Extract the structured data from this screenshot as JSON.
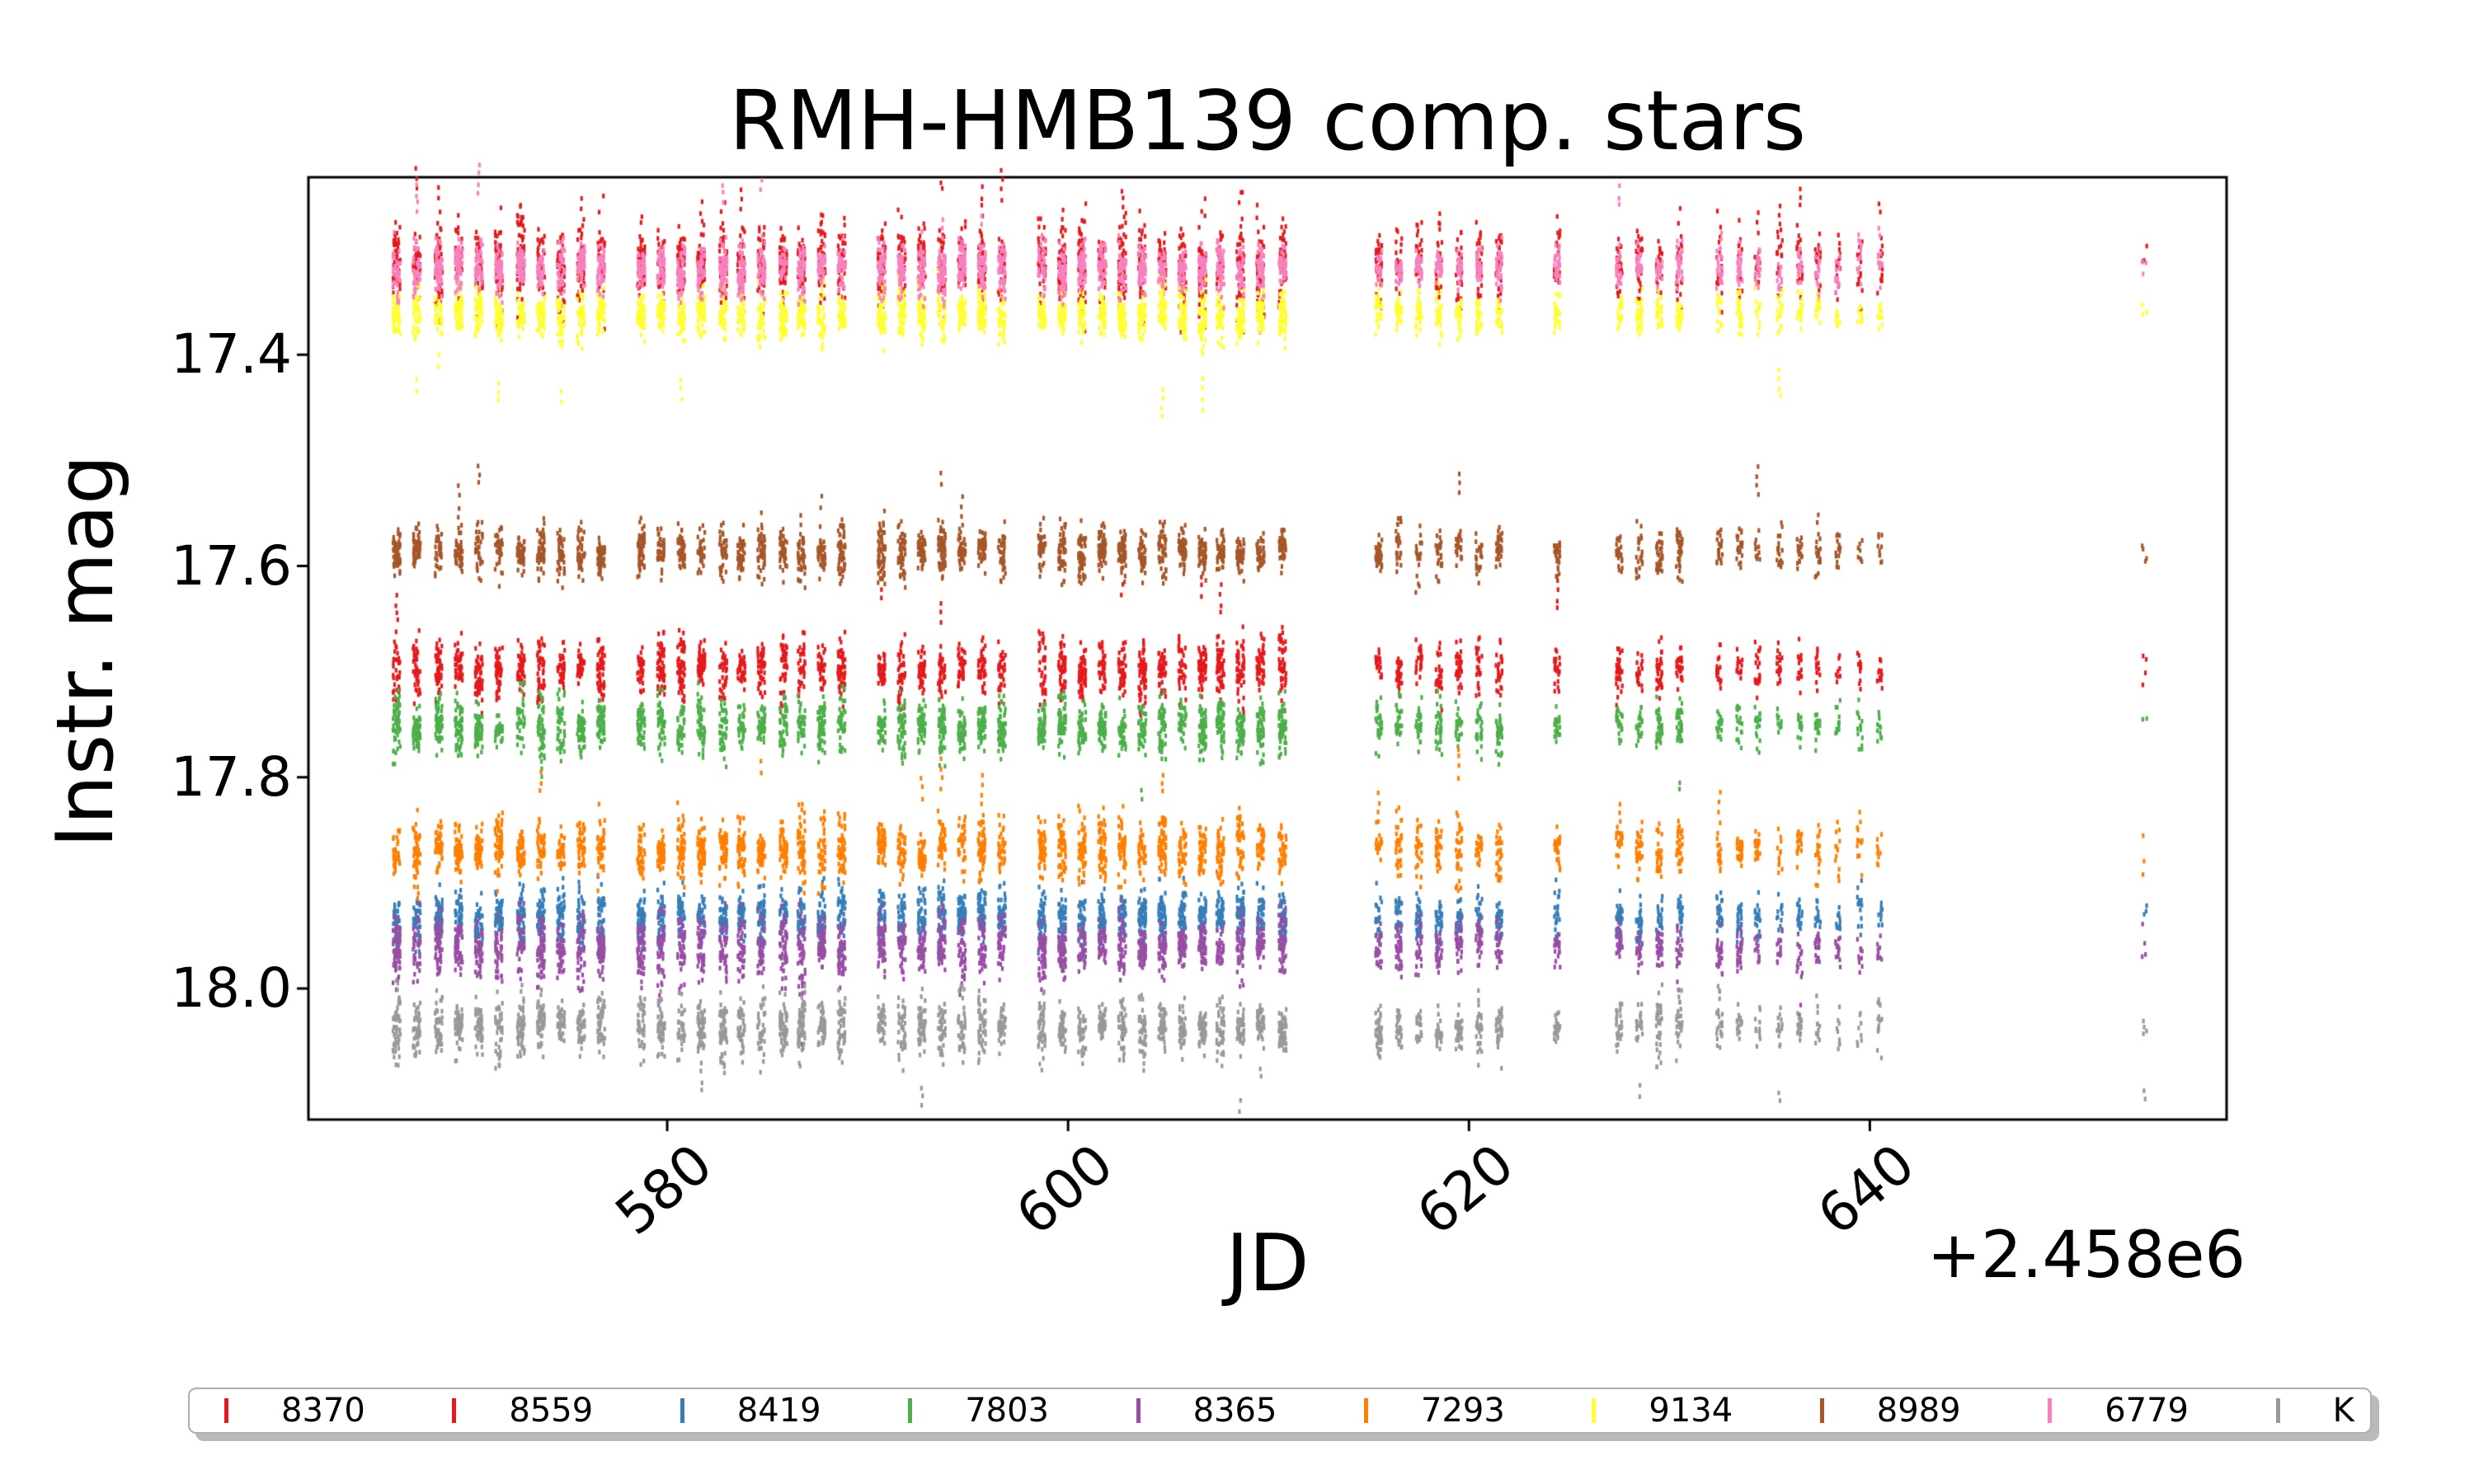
{
  "chart_data": {
    "type": "scatter",
    "title": "RMH-HMB139 comp. stars",
    "xlabel": "JD",
    "ylabel": "Instr. mag",
    "x_offset_text": "+2.458e6",
    "xlim": [
      562.1,
      657.8
    ],
    "ylim": [
      18.124,
      17.232
    ],
    "y_inverted": true,
    "grid": false,
    "legend_position": "bottom",
    "xticks": [
      "580",
      "600",
      "620",
      "640"
    ],
    "xtick_values": [
      580,
      600,
      620,
      640
    ],
    "yticks": [
      "17.4",
      "17.6",
      "17.8",
      "18.0"
    ],
    "ytick_values": [
      17.4,
      17.6,
      17.8,
      18.0
    ],
    "series": [
      {
        "id": "8370",
        "color": "#e41a1c",
        "mag": 17.315,
        "std": 0.016,
        "outlier_dir": -1,
        "outlier_prob": 0.3
      },
      {
        "id": "8559",
        "color": "#e41a1c",
        "mag": 17.698,
        "std": 0.011,
        "outlier_dir": -1,
        "outlier_prob": 0.18
      },
      {
        "id": "8419",
        "color": "#377eb8",
        "mag": 17.932,
        "std": 0.01,
        "outlier_dir": 0,
        "outlier_prob": 0.0
      },
      {
        "id": "7803",
        "color": "#4daf4a",
        "mag": 17.752,
        "std": 0.01,
        "outlier_dir": 1,
        "outlier_prob": 0.1
      },
      {
        "id": "8365",
        "color": "#984ea3",
        "mag": 17.962,
        "std": 0.011,
        "outlier_dir": 1,
        "outlier_prob": 0.05
      },
      {
        "id": "7293",
        "color": "#ff7f00",
        "mag": 17.868,
        "std": 0.011,
        "outlier_dir": -1,
        "outlier_prob": 0.12
      },
      {
        "id": "9134",
        "color": "#ffff33",
        "mag": 17.362,
        "std": 0.0095,
        "outlier_dir": 1,
        "outlier_prob": 0.1
      },
      {
        "id": "8989",
        "color": "#a65628",
        "mag": 17.586,
        "std": 0.01,
        "outlier_dir": -1,
        "outlier_prob": 0.12
      },
      {
        "id": "6779",
        "color": "#f781bf",
        "mag": 17.318,
        "std": 0.0095,
        "outlier_dir": -1,
        "outlier_prob": 0.08
      },
      {
        "id": "K",
        "color": "#999999",
        "mag": 18.036,
        "std": 0.011,
        "outlier_dir": 1,
        "outlier_prob": 0.1
      }
    ],
    "nights": [
      [
        566.5,
        1
      ],
      [
        567.5,
        1
      ],
      [
        568.6,
        1
      ],
      [
        569.6,
        1
      ],
      [
        570.6,
        1
      ],
      [
        571.6,
        1
      ],
      [
        572.7,
        1
      ],
      [
        573.7,
        1
      ],
      [
        574.7,
        1
      ],
      [
        575.7,
        1
      ],
      [
        576.7,
        1
      ],
      [
        578.7,
        1
      ],
      [
        579.7,
        1
      ],
      [
        580.7,
        1
      ],
      [
        581.7,
        1
      ],
      [
        582.8,
        1
      ],
      [
        583.7,
        1
      ],
      [
        584.7,
        1
      ],
      [
        585.8,
        1
      ],
      [
        586.7,
        1
      ],
      [
        587.7,
        1
      ],
      [
        588.7,
        1
      ],
      [
        590.7,
        1
      ],
      [
        591.7,
        1
      ],
      [
        592.7,
        1
      ],
      [
        593.7,
        1
      ],
      [
        594.7,
        1
      ],
      [
        595.7,
        1
      ],
      [
        596.7,
        1
      ],
      [
        598.7,
        1
      ],
      [
        599.7,
        1
      ],
      [
        600.7,
        1
      ],
      [
        601.7,
        1
      ],
      [
        602.7,
        1
      ],
      [
        603.7,
        1
      ],
      [
        604.7,
        1
      ],
      [
        605.7,
        1
      ],
      [
        606.7,
        1
      ],
      [
        607.6,
        1
      ],
      [
        608.6,
        1
      ],
      [
        609.6,
        1
      ],
      [
        610.7,
        1
      ],
      [
        615.5,
        0.62
      ],
      [
        616.5,
        0.62
      ],
      [
        617.5,
        0.62
      ],
      [
        618.5,
        0.62
      ],
      [
        619.5,
        0.62
      ],
      [
        620.5,
        0.62
      ],
      [
        621.5,
        0.62
      ],
      [
        624.4,
        0.5
      ],
      [
        627.5,
        0.6
      ],
      [
        628.5,
        0.6
      ],
      [
        629.5,
        0.6
      ],
      [
        630.5,
        0.6
      ],
      [
        632.5,
        0.45
      ],
      [
        633.5,
        0.45
      ],
      [
        634.4,
        0.34
      ],
      [
        635.5,
        0.34
      ],
      [
        636.5,
        0.34
      ],
      [
        637.4,
        0.34
      ],
      [
        638.4,
        0.24
      ],
      [
        639.5,
        0.24
      ],
      [
        640.5,
        0.24
      ],
      [
        653.7,
        0.07
      ]
    ],
    "legend_labels": [
      "8370",
      "8559",
      "8419",
      "7803",
      "8365",
      "7293",
      "9134",
      "8989",
      "6779",
      "K"
    ]
  }
}
